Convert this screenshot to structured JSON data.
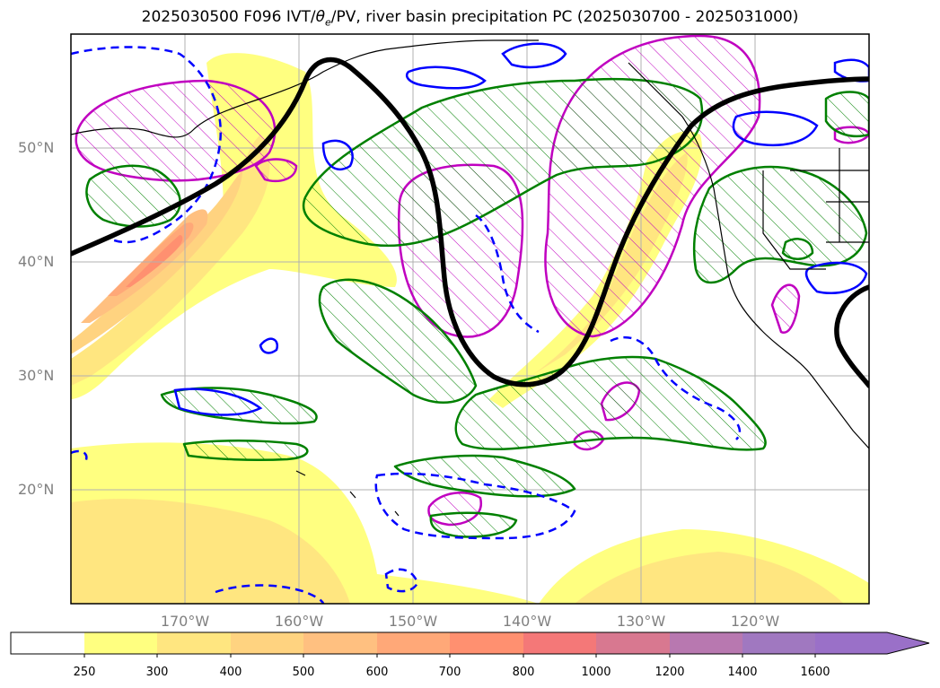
{
  "title": {
    "prefix": "2025030500 F096 IVT/",
    "theta": "θ",
    "theta_sub": "e",
    "suffix": "/PV, river basin precipitation PC (2025030700 - 2025031000)"
  },
  "map": {
    "lat_labels": [
      "50°N",
      "40°N",
      "30°N",
      "20°N"
    ],
    "lon_labels": [
      "170°W",
      "160°W",
      "150°W",
      "140°W",
      "130°W",
      "120°W"
    ],
    "extent": {
      "lon_min": -180,
      "lon_max": -110,
      "lat_min": 10,
      "lat_max": 60
    },
    "colors": {
      "pv_contour": "#000000",
      "theta_e_positive": "#0000ff",
      "theta_e_negative": "#0000ff",
      "precip_pc_positive": "#008000",
      "precip_pc_negative": "#c000c0",
      "coastline": "#000000",
      "gridline": "#b0b0b0"
    }
  },
  "colorbar": {
    "levels": [
      "250",
      "300",
      "400",
      "500",
      "600",
      "700",
      "800",
      "1000",
      "1200",
      "1400",
      "1600"
    ],
    "colors": [
      "#ffffff",
      "#ffff80",
      "#ffe680",
      "#ffd380",
      "#ffc080",
      "#ffa878",
      "#ff9070",
      "#f47878",
      "#d87890",
      "#b878b0",
      "#a078c0",
      "#9a70c8"
    ],
    "extend": "max"
  }
}
